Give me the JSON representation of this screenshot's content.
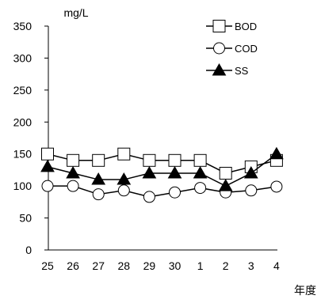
{
  "chart_data": {
    "type": "line",
    "unit_label": "mg/L",
    "xlabel": "年度",
    "categories": [
      "25",
      "26",
      "27",
      "28",
      "29",
      "30",
      "1",
      "2",
      "3",
      "4"
    ],
    "ylim": [
      0,
      350
    ],
    "yticks": [
      0,
      50,
      100,
      150,
      200,
      250,
      300,
      350
    ],
    "grid": false,
    "legend_position": "top-right",
    "series": [
      {
        "name": "BOD",
        "marker": "square-open",
        "color": "#000000",
        "values": [
          150,
          140,
          140,
          150,
          140,
          140,
          140,
          120,
          130,
          140
        ]
      },
      {
        "name": "COD",
        "marker": "circle-open",
        "color": "#000000",
        "values": [
          100,
          100,
          87,
          93,
          83,
          90,
          97,
          90,
          93,
          99
        ]
      },
      {
        "name": "SS",
        "marker": "triangle-filled",
        "color": "#000000",
        "values": [
          130,
          120,
          110,
          110,
          120,
          120,
          120,
          100,
          120,
          150
        ]
      }
    ]
  }
}
